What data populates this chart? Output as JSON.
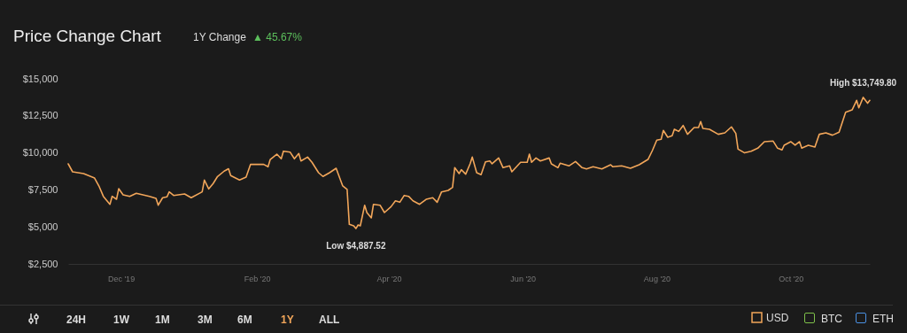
{
  "chart_data": {
    "type": "line",
    "title": "Price Change Chart",
    "subtitle": "1Y Change",
    "x": [
      "2019-11-07",
      "2019-11-09",
      "2019-11-14",
      "2019-11-19",
      "2019-11-21",
      "2019-11-23",
      "2019-11-26",
      "2019-11-27",
      "2019-11-29",
      "2019-11-30",
      "2019-12-02",
      "2019-12-05",
      "2019-12-08",
      "2019-12-11",
      "2019-12-14",
      "2019-12-17",
      "2019-12-18",
      "2019-12-20",
      "2019-12-22",
      "2019-12-23",
      "2019-12-25",
      "2019-12-30",
      "2020-01-02",
      "2020-01-07",
      "2020-01-08",
      "2020-01-10",
      "2020-01-12",
      "2020-01-14",
      "2020-01-17",
      "2020-01-19",
      "2020-01-20",
      "2020-01-24",
      "2020-01-27",
      "2020-01-29",
      "2020-02-04",
      "2020-02-06",
      "2020-02-07",
      "2020-02-10",
      "2020-02-12",
      "2020-02-13",
      "2020-02-16",
      "2020-02-18",
      "2020-02-20",
      "2020-02-21",
      "2020-02-24",
      "2020-02-26",
      "2020-02-29",
      "2020-03-02",
      "2020-03-05",
      "2020-03-08",
      "2020-03-09",
      "2020-03-11",
      "2020-03-13",
      "2020-03-14",
      "2020-03-16",
      "2020-03-17",
      "2020-03-18",
      "2020-03-19",
      "2020-03-21",
      "2020-03-22",
      "2020-03-24",
      "2020-03-25",
      "2020-03-28",
      "2020-03-30",
      "2020-04-02",
      "2020-04-04",
      "2020-04-06",
      "2020-04-08",
      "2020-04-10",
      "2020-04-12",
      "2020-04-15",
      "2020-04-18",
      "2020-04-21",
      "2020-04-23",
      "2020-04-25",
      "2020-04-28",
      "2020-04-30",
      "2020-05-01",
      "2020-05-03",
      "2020-05-04",
      "2020-05-06",
      "2020-05-08",
      "2020-05-09",
      "2020-05-11",
      "2020-05-13",
      "2020-05-15",
      "2020-05-17",
      "2020-05-18",
      "2020-05-21",
      "2020-05-23",
      "2020-05-26",
      "2020-05-27",
      "2020-05-31",
      "2020-06-03",
      "2020-06-04",
      "2020-06-05",
      "2020-06-07",
      "2020-06-09",
      "2020-06-13",
      "2020-06-14",
      "2020-06-17",
      "2020-06-18",
      "2020-06-22",
      "2020-06-25",
      "2020-06-28",
      "2020-06-30",
      "2020-07-03",
      "2020-07-07",
      "2020-07-11",
      "2020-07-12",
      "2020-07-16",
      "2020-07-20",
      "2020-07-24",
      "2020-07-28",
      "2020-07-30",
      "2020-08-01",
      "2020-08-03",
      "2020-08-04",
      "2020-08-06",
      "2020-08-08",
      "2020-08-09",
      "2020-08-11",
      "2020-08-13",
      "2020-08-15",
      "2020-08-18",
      "2020-08-20",
      "2020-08-21",
      "2020-08-22",
      "2020-08-25",
      "2020-08-29",
      "2020-09-01",
      "2020-09-04",
      "2020-09-06",
      "2020-09-07",
      "2020-09-10",
      "2020-09-13",
      "2020-09-16",
      "2020-09-19",
      "2020-09-23",
      "2020-09-25",
      "2020-09-27",
      "2020-09-28",
      "2020-10-01",
      "2020-10-03",
      "2020-10-05",
      "2020-10-06",
      "2020-10-09",
      "2020-10-12",
      "2020-10-14",
      "2020-10-17",
      "2020-10-20",
      "2020-10-23",
      "2020-10-26",
      "2020-10-29",
      "2020-10-31",
      "2020-11-01",
      "2020-11-03",
      "2020-11-05",
      "2020-11-06"
    ],
    "series": [
      {
        "name": "USD",
        "color": "#f2a65a",
        "values": [
          9258,
          8720,
          8600,
          8300,
          7760,
          7065,
          6525,
          7065,
          6865,
          7580,
          7165,
          7065,
          7265,
          7165,
          7065,
          6925,
          6466,
          6970,
          7030,
          7365,
          7125,
          7225,
          6970,
          7365,
          8165,
          7565,
          7925,
          8405,
          8765,
          8925,
          8465,
          8165,
          8365,
          9220,
          9220,
          9060,
          9555,
          9915,
          9600,
          10115,
          10055,
          9600,
          9955,
          9455,
          9715,
          9360,
          8660,
          8405,
          8660,
          8960,
          8560,
          7765,
          7525,
          5170,
          5070,
          4887.52,
          5130,
          5070,
          6466,
          5970,
          5610,
          6525,
          6466,
          5970,
          6365,
          6765,
          6665,
          7125,
          7065,
          6765,
          6525,
          6865,
          6970,
          6665,
          7365,
          7465,
          7665,
          9000,
          8600,
          8860,
          8560,
          9260,
          9715,
          8660,
          8525,
          9395,
          9455,
          9260,
          9655,
          9000,
          9120,
          8720,
          9360,
          9360,
          9915,
          9360,
          9655,
          9455,
          9655,
          9260,
          9000,
          9300,
          9120,
          9420,
          9000,
          8920,
          9060,
          8920,
          9200,
          9060,
          9120,
          8960,
          9200,
          9555,
          10155,
          10855,
          10915,
          11515,
          11055,
          11155,
          11595,
          11450,
          11850,
          11255,
          11710,
          11710,
          12110,
          11650,
          11595,
          11255,
          11350,
          11755,
          11315,
          10255,
          10000,
          10115,
          10315,
          10755,
          10795,
          10315,
          10195,
          10515,
          10755,
          10515,
          10755,
          10315,
          10515,
          10395,
          11255,
          11350,
          11195,
          11395,
          12745,
          12910,
          13545,
          13045,
          13749.8,
          13350,
          13545
        ]
      }
    ],
    "xlim": [
      "2019-11-07",
      "2020-11-06"
    ],
    "xticks": [
      {
        "value": "2019-12-01",
        "label": "Dec '19"
      },
      {
        "value": "2020-02-01",
        "label": "Feb '20"
      },
      {
        "value": "2020-04-01",
        "label": "Apr '20"
      },
      {
        "value": "2020-06-01",
        "label": "Jun '20"
      },
      {
        "value": "2020-08-01",
        "label": "Aug '20"
      },
      {
        "value": "2020-10-01",
        "label": "Oct '20"
      }
    ],
    "ylim": [
      2500,
      15000
    ],
    "yticks": [
      {
        "value": 2500,
        "label": "$2,500"
      },
      {
        "value": 5000,
        "label": "$5,000"
      },
      {
        "value": 7500,
        "label": "$7,500"
      },
      {
        "value": 10000,
        "label": "$10,000"
      },
      {
        "value": 12500,
        "label": "$12,500"
      },
      {
        "value": 15000,
        "label": "$15,000"
      }
    ],
    "legend": "bottom right",
    "annotations": [
      "▲ 45.67%",
      "24H",
      "1W",
      "1M",
      "3M",
      "6M",
      "1Y",
      "ALL",
      "BTC",
      "ETH",
      {
        "text": "High $13,749.80",
        "x": "2020-11-03",
        "y": 13749.8
      },
      {
        "text": "Low $4,887.52",
        "x": "2020-03-17",
        "y": 4887.52
      }
    ]
  }
}
